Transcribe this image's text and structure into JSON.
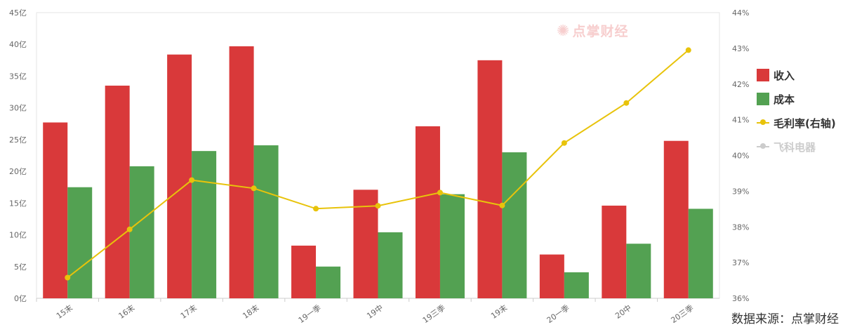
{
  "chart_data": {
    "type": "bar",
    "categories": [
      "15末",
      "16末",
      "17末",
      "18末",
      "19一季",
      "19中",
      "19三季",
      "19末",
      "20一季",
      "20中",
      "20三季"
    ],
    "series": [
      {
        "name": "收入",
        "type": "bar",
        "axis": "left",
        "color": "#d9393a",
        "values": [
          27.7,
          33.5,
          38.4,
          39.7,
          8.3,
          17.1,
          27.1,
          37.5,
          6.9,
          14.6,
          24.8
        ]
      },
      {
        "name": "成本",
        "type": "bar",
        "axis": "left",
        "color": "#53a152",
        "values": [
          17.5,
          20.8,
          23.2,
          24.1,
          5.0,
          10.4,
          16.4,
          23.0,
          4.1,
          8.6,
          14.1
        ]
      },
      {
        "name": "毛利率(右轴)",
        "type": "line",
        "axis": "right",
        "color": "#e8c30b",
        "values": [
          36.58,
          37.93,
          39.31,
          39.08,
          38.51,
          38.59,
          38.96,
          38.6,
          40.35,
          41.47,
          42.95
        ]
      }
    ],
    "y_left": {
      "min": 0,
      "max": 45,
      "step": 5,
      "ticks": [
        "0亿",
        "5亿",
        "10亿",
        "15亿",
        "20亿",
        "25亿",
        "30亿",
        "35亿",
        "40亿",
        "45亿"
      ]
    },
    "y_right": {
      "min": 36,
      "max": 44,
      "step": 1,
      "ticks": [
        "36%",
        "37%",
        "38%",
        "39%",
        "40%",
        "41%",
        "42%",
        "43%",
        "44%"
      ]
    },
    "legend_placement": "right",
    "grid": false
  },
  "legend": {
    "items": [
      {
        "label": "收入",
        "kind": "bar",
        "color": "#d9393a",
        "active": true
      },
      {
        "label": "成本",
        "kind": "bar",
        "color": "#53a152",
        "active": true
      },
      {
        "label": "毛利率(右轴)",
        "kind": "line",
        "color": "#e8c30b",
        "active": true
      },
      {
        "label": "飞科电器",
        "kind": "line",
        "color": "#cccccc",
        "active": false
      }
    ]
  },
  "watermark": {
    "text": "点掌财经",
    "icon": "fireworks-logo-icon"
  },
  "source": {
    "text": "数据来源：点掌财经"
  }
}
